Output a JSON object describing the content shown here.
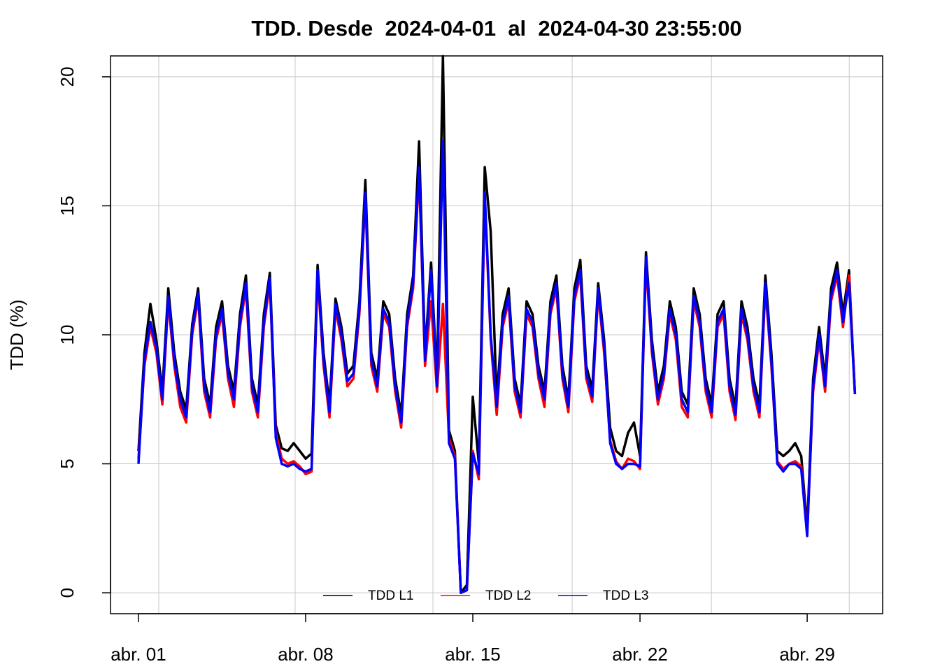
{
  "chart_data": {
    "type": "line",
    "title": "TDD. Desde  2024-04-01  al  2024-04-30 23:55:00",
    "y_label": "TDD (%)",
    "x": [
      1,
      1.25,
      1.5,
      1.75,
      2,
      2.25,
      2.5,
      2.75,
      3,
      3.25,
      3.5,
      3.75,
      4,
      4.25,
      4.5,
      4.75,
      5,
      5.25,
      5.5,
      5.75,
      6,
      6.25,
      6.5,
      6.75,
      7,
      7.25,
      7.5,
      7.75,
      8,
      8.25,
      8.5,
      8.75,
      9,
      9.25,
      9.5,
      9.75,
      10,
      10.25,
      10.5,
      10.75,
      11,
      11.25,
      11.5,
      11.75,
      12,
      12.25,
      12.5,
      12.75,
      13,
      13.25,
      13.5,
      13.75,
      14,
      14.25,
      14.5,
      14.75,
      15,
      15.25,
      15.5,
      15.75,
      16,
      16.25,
      16.5,
      16.75,
      17,
      17.25,
      17.5,
      17.75,
      18,
      18.25,
      18.5,
      18.75,
      19,
      19.25,
      19.5,
      19.75,
      20,
      20.25,
      20.5,
      20.75,
      21,
      21.25,
      21.5,
      21.75,
      22,
      22.25,
      22.5,
      22.75,
      23,
      23.25,
      23.5,
      23.75,
      24,
      24.25,
      24.5,
      24.75,
      25,
      25.25,
      25.5,
      25.75,
      26,
      26.25,
      26.5,
      26.75,
      27,
      27.25,
      27.5,
      27.75,
      28,
      28.25,
      28.5,
      28.75,
      29,
      29.25,
      29.5,
      29.75,
      30,
      30.25,
      30.5,
      30.75,
      31
    ],
    "series": [
      {
        "name": "TDD L1",
        "color": "#000000",
        "values": [
          5.5,
          9.3,
          11.2,
          9.8,
          7.8,
          11.8,
          9.3,
          7.8,
          7.1,
          10.4,
          11.8,
          8.3,
          7.3,
          10.3,
          11.3,
          8.8,
          7.8,
          10.8,
          12.3,
          8.3,
          7.3,
          10.8,
          12.4,
          6.5,
          5.6,
          5.5,
          5.8,
          5.5,
          5.2,
          5.4,
          12.7,
          9.3,
          7.3,
          11.4,
          10.3,
          8.5,
          8.8,
          11.3,
          16.0,
          9.3,
          8.3,
          11.3,
          10.8,
          8.3,
          6.9,
          10.8,
          12.3,
          17.5,
          9.3,
          12.8,
          8.3,
          20.8,
          6.3,
          5.5,
          0.0,
          0.3,
          7.6,
          5.0,
          16.5,
          14.0,
          7.5,
          10.8,
          11.8,
          8.3,
          7.3,
          11.3,
          10.8,
          8.8,
          7.8,
          11.3,
          12.3,
          8.8,
          7.5,
          11.8,
          12.9,
          8.8,
          7.9,
          12.0,
          9.8,
          6.4,
          5.5,
          5.3,
          6.2,
          6.6,
          5.3,
          13.2,
          9.8,
          7.8,
          8.8,
          11.3,
          10.3,
          7.8,
          7.3,
          11.8,
          10.8,
          8.3,
          7.3,
          10.8,
          11.3,
          8.3,
          7.2,
          11.3,
          10.3,
          8.3,
          7.3,
          12.3,
          9.3,
          5.5,
          5.3,
          5.5,
          5.8,
          5.3,
          2.5,
          8.3,
          10.3,
          8.3,
          11.8,
          12.8,
          10.8,
          12.5,
          7.7
        ]
      },
      {
        "name": "TDD L2",
        "color": "#ff0000",
        "values": [
          5.2,
          8.8,
          10.3,
          9.3,
          7.3,
          11.3,
          8.8,
          7.2,
          6.6,
          10.0,
          11.4,
          7.8,
          6.8,
          9.8,
          10.8,
          8.3,
          7.2,
          10.3,
          11.8,
          7.8,
          6.8,
          10.3,
          12.0,
          6.2,
          5.2,
          5.0,
          5.1,
          4.9,
          4.6,
          4.7,
          12.3,
          8.8,
          6.8,
          11.0,
          9.8,
          8.0,
          8.3,
          10.8,
          15.3,
          8.8,
          7.8,
          10.8,
          10.3,
          7.8,
          6.4,
          10.3,
          11.8,
          16.3,
          8.8,
          11.3,
          7.8,
          11.2,
          6.0,
          5.3,
          0.0,
          0.1,
          5.5,
          4.4,
          15.3,
          9.8,
          6.9,
          10.3,
          11.3,
          7.8,
          6.8,
          10.8,
          10.3,
          8.3,
          7.2,
          10.8,
          11.8,
          8.3,
          7.0,
          11.3,
          12.3,
          8.3,
          7.4,
          11.6,
          9.3,
          5.9,
          5.1,
          4.8,
          5.2,
          5.1,
          4.8,
          12.8,
          9.3,
          7.3,
          8.3,
          10.8,
          9.8,
          7.2,
          6.8,
          11.3,
          10.3,
          7.8,
          6.8,
          10.3,
          10.8,
          7.8,
          6.7,
          10.8,
          9.8,
          7.8,
          6.8,
          11.8,
          8.8,
          5.1,
          4.8,
          5.0,
          5.1,
          4.9,
          2.3,
          7.8,
          9.8,
          7.8,
          11.3,
          12.3,
          10.3,
          12.3,
          7.7
        ]
      },
      {
        "name": "TDD L3",
        "color": "#0000ff",
        "values": [
          5.0,
          9.0,
          10.5,
          9.5,
          7.5,
          11.5,
          9.0,
          7.5,
          6.8,
          10.2,
          11.6,
          8.0,
          7.0,
          10.0,
          11.0,
          8.5,
          7.5,
          10.5,
          12.0,
          8.0,
          7.0,
          10.5,
          12.2,
          6.0,
          5.0,
          4.9,
          5.0,
          4.8,
          4.7,
          4.8,
          12.5,
          9.0,
          7.0,
          11.2,
          10.0,
          8.2,
          8.5,
          11.0,
          15.5,
          9.0,
          8.0,
          11.0,
          10.5,
          8.0,
          6.6,
          10.5,
          12.0,
          16.5,
          9.0,
          12.5,
          8.0,
          17.5,
          5.8,
          5.2,
          0.0,
          0.1,
          5.4,
          4.6,
          15.5,
          10.0,
          7.2,
          10.5,
          11.5,
          8.0,
          7.0,
          11.0,
          10.5,
          8.5,
          7.5,
          11.0,
          12.0,
          8.5,
          7.2,
          11.5,
          12.5,
          8.5,
          7.6,
          11.8,
          9.5,
          5.8,
          5.0,
          4.8,
          5.0,
          5.0,
          4.9,
          13.0,
          9.5,
          7.5,
          8.5,
          11.0,
          10.0,
          7.5,
          7.0,
          11.5,
          10.5,
          8.0,
          7.0,
          10.5,
          11.0,
          8.0,
          6.9,
          11.0,
          10.0,
          8.0,
          7.0,
          12.0,
          9.0,
          5.0,
          4.7,
          5.0,
          5.0,
          4.8,
          2.2,
          8.0,
          10.0,
          8.0,
          11.5,
          12.5,
          10.5,
          12.0,
          7.7
        ]
      }
    ],
    "xlim": [
      -0.17,
      32.16
    ],
    "xticks": [
      {
        "value": 1,
        "label": "abr. 01"
      },
      {
        "value": 8,
        "label": "abr. 08"
      },
      {
        "value": 15,
        "label": "abr. 15"
      },
      {
        "value": 22,
        "label": "abr. 22"
      },
      {
        "value": 29,
        "label": "abr. 29"
      }
    ],
    "xgrid": [
      1.85,
      7.56,
      13.33,
      19.16,
      24.99,
      30.76
    ],
    "ylim": [
      -0.81,
      20.81
    ],
    "yticks": [
      0,
      5,
      10,
      15,
      20
    ],
    "grid": true,
    "legend": "bottom"
  }
}
